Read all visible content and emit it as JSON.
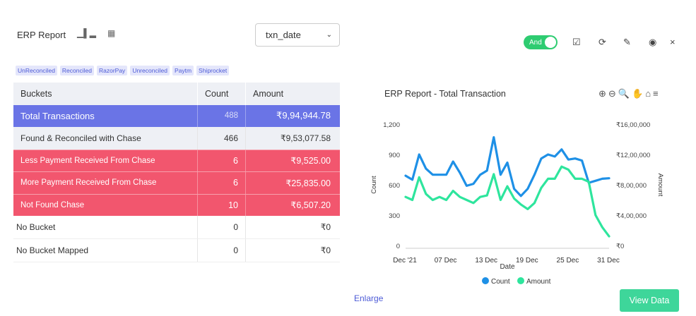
{
  "header": {
    "title": "ERP Report",
    "select_value": "txn_date",
    "toggle_label": "And"
  },
  "chips": [
    "UnReconciled",
    "Reconciled",
    "RazorPay",
    "Unreconciled",
    "Paytm",
    "Shiprocket"
  ],
  "table": {
    "headers": [
      "Buckets",
      "Count",
      "Amount"
    ],
    "rows": [
      {
        "bucket": "Total  Transactions",
        "count": "488",
        "amount": "₹9,94,944.78"
      },
      {
        "bucket": "Found & Reconciled with Chase",
        "count": "466",
        "amount": "₹9,53,077.58"
      },
      {
        "bucket": "Less Payment Received From Chase",
        "count": "6",
        "amount": "₹9,525.00"
      },
      {
        "bucket": "More Payment Received From Chase",
        "count": "6",
        "amount": "₹25,835.00"
      },
      {
        "bucket": " Not Found Chase",
        "count": "10",
        "amount": "₹6,507.20"
      },
      {
        "bucket": "No Bucket",
        "count": "0",
        "amount": "₹0"
      },
      {
        "bucket": "No Bucket Mapped",
        "count": "0",
        "amount": "₹0"
      }
    ]
  },
  "chart_data": {
    "type": "line",
    "title": "ERP Report - Total Transaction",
    "xlabel": "Date",
    "ylabel_left": "Count",
    "ylabel_right": "Amount",
    "x_ticks": [
      "Dec '21",
      "07 Dec",
      "13 Dec",
      "19 Dec",
      "25 Dec",
      "31 Dec"
    ],
    "y_left_ticks": [
      "0",
      "300",
      "600",
      "900",
      "1,200"
    ],
    "y_right_ticks": [
      "₹0",
      "₹4,00,000",
      "₹8,00,000",
      "₹12,00,000",
      "₹16,00,000"
    ],
    "ylim_left": [
      0,
      1200
    ],
    "ylim_right": [
      0,
      1600000
    ],
    "x_days": [
      1,
      2,
      3,
      4,
      5,
      6,
      7,
      8,
      9,
      10,
      11,
      12,
      13,
      14,
      15,
      16,
      17,
      18,
      19,
      20,
      21,
      22,
      23,
      24,
      25,
      26,
      27,
      28,
      29,
      30,
      31
    ],
    "series": [
      {
        "name": "Count",
        "color": "#1e90e6",
        "axis": "left",
        "values": [
          690,
          650,
          900,
          760,
          700,
          700,
          700,
          830,
          720,
          590,
          610,
          700,
          740,
          1070,
          700,
          820,
          560,
          490,
          560,
          700,
          860,
          900,
          880,
          950,
          850,
          860,
          840,
          620,
          640,
          660,
          665
        ]
      },
      {
        "name": "Amount",
        "color": "#2ee59d",
        "axis": "right",
        "values": [
          640000,
          600000,
          900000,
          680000,
          600000,
          640000,
          600000,
          720000,
          640000,
          600000,
          560000,
          640000,
          660000,
          940000,
          600000,
          780000,
          620000,
          540000,
          480000,
          560000,
          760000,
          880000,
          880000,
          1040000,
          1000000,
          880000,
          880000,
          840000,
          400000,
          240000,
          120000
        ]
      }
    ],
    "legend": "bottom",
    "grid": false
  },
  "chart_tools": [
    "zoom-in-icon",
    "zoom-out-icon",
    "zoom-select-icon",
    "pan-icon",
    "home-icon",
    "menu-icon"
  ],
  "footer": {
    "enlarge": "Enlarge",
    "view_data": "View Data"
  }
}
